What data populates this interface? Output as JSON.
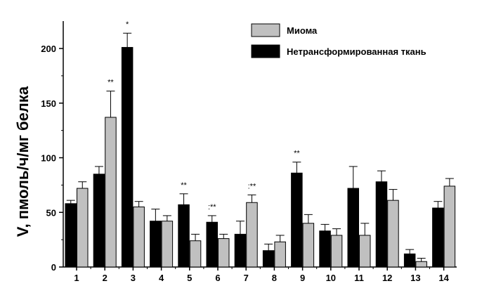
{
  "chart_data": {
    "type": "bar",
    "title": "",
    "xlabel": "",
    "ylabel": "V, пмоль/ч/мг белка",
    "ylim": [
      0,
      225
    ],
    "yticks": [
      0,
      50,
      100,
      150,
      200
    ],
    "categories": [
      "1",
      "2",
      "3",
      "4",
      "5",
      "6",
      "7",
      "8",
      "9",
      "10",
      "11",
      "12",
      "13",
      "14"
    ],
    "legend_position": "top-right",
    "series": [
      {
        "name": "Нетрансформированная ткань",
        "color": "#000000",
        "values": [
          58,
          85,
          201,
          42,
          57,
          41,
          30,
          15,
          86,
          33,
          72,
          78,
          12,
          54
        ],
        "errors": [
          3,
          7,
          13,
          11,
          10,
          6,
          12,
          6,
          10,
          6,
          20,
          10,
          4,
          6
        ]
      },
      {
        "name": "Миома",
        "color": "#c0c0c0",
        "values": [
          72,
          137,
          55,
          42,
          24,
          26,
          59,
          23,
          40,
          29,
          29,
          61,
          5,
          74
        ],
        "errors": [
          6,
          24,
          5,
          5,
          6,
          4,
          7,
          6,
          8,
          6,
          11,
          10,
          3,
          7
        ]
      }
    ],
    "annotations": [
      {
        "category": "2",
        "series": 1,
        "text": "**"
      },
      {
        "category": "3",
        "series": 0,
        "text": "*"
      },
      {
        "category": "5",
        "series": 0,
        "text": "**"
      },
      {
        "category": "6",
        "series": 0,
        "text": ":**"
      },
      {
        "category": "7",
        "series": 1,
        "text": ":**"
      },
      {
        "category": "9",
        "series": 0,
        "text": "**"
      }
    ]
  }
}
